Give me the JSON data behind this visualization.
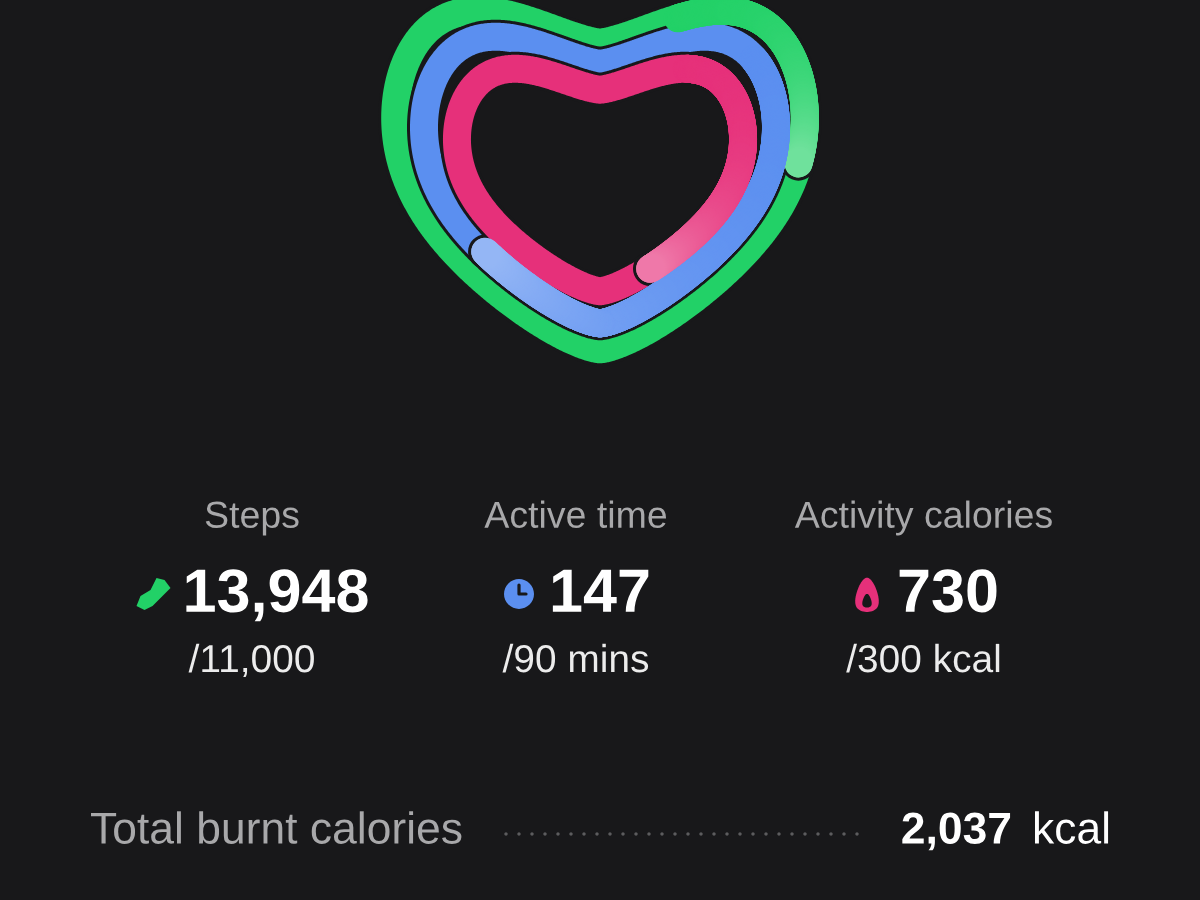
{
  "chart_data": {
    "type": "other",
    "categories": [
      "Steps",
      "Active time",
      "Activity calories"
    ],
    "colors": [
      "#22d167",
      "#5b8ff0",
      "#e6307a"
    ],
    "series": [
      {
        "values": [
          13948,
          147,
          730
        ],
        "value_labels": [
          "13,948",
          "147",
          "730"
        ]
      },
      {
        "values": [
          11000,
          90,
          300
        ],
        "value_labels": [
          "/11,000",
          "/90 mins",
          "/300 kcal"
        ]
      }
    ],
    "annotations": [
      "Total burnt calories",
      "2,037",
      "kcal"
    ]
  }
}
